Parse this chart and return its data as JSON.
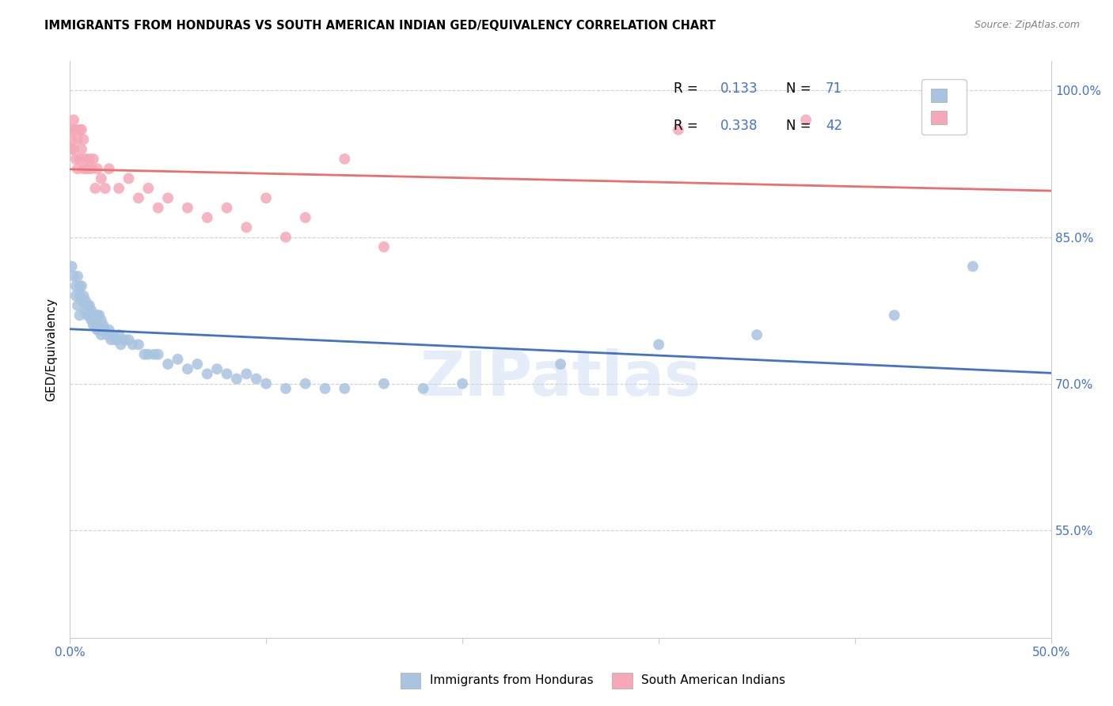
{
  "title": "IMMIGRANTS FROM HONDURAS VS SOUTH AMERICAN INDIAN GED/EQUIVALENCY CORRELATION CHART",
  "source": "Source: ZipAtlas.com",
  "ylabel": "GED/Equivalency",
  "xlim": [
    0.0,
    0.5
  ],
  "ylim": [
    0.44,
    1.03
  ],
  "xtick_positions": [
    0.0,
    0.1,
    0.2,
    0.3,
    0.4,
    0.5
  ],
  "xticklabels": [
    "0.0%",
    "",
    "",
    "",
    "",
    "50.0%"
  ],
  "ytick_positions": [
    0.55,
    0.7,
    0.85,
    1.0
  ],
  "ytick_labels": [
    "55.0%",
    "70.0%",
    "85.0%",
    "100.0%"
  ],
  "watermark": "ZIPatlas",
  "legend_v1": "0.133",
  "legend_nv1": "71",
  "legend_v2": "0.338",
  "legend_nv2": "42",
  "color_honduras": "#a8c4e0",
  "color_sa_indians": "#f4a8b8",
  "color_line_honduras": "#4472c4",
  "color_line_sa": "#e87070",
  "color_text_blue": "#4472c4",
  "honduras_x": [
    0.001,
    0.002,
    0.003,
    0.003,
    0.004,
    0.004,
    0.005,
    0.005,
    0.005,
    0.006,
    0.006,
    0.007,
    0.008,
    0.008,
    0.009,
    0.009,
    0.01,
    0.01,
    0.011,
    0.011,
    0.012,
    0.012,
    0.013,
    0.013,
    0.014,
    0.014,
    0.015,
    0.015,
    0.016,
    0.016,
    0.017,
    0.018,
    0.019,
    0.02,
    0.021,
    0.022,
    0.023,
    0.024,
    0.025,
    0.026,
    0.028,
    0.03,
    0.032,
    0.035,
    0.038,
    0.04,
    0.043,
    0.045,
    0.05,
    0.055,
    0.06,
    0.065,
    0.07,
    0.075,
    0.08,
    0.085,
    0.09,
    0.095,
    0.1,
    0.11,
    0.12,
    0.13,
    0.14,
    0.16,
    0.18,
    0.2,
    0.25,
    0.3,
    0.35,
    0.42,
    0.46
  ],
  "honduras_y": [
    0.82,
    0.81,
    0.8,
    0.79,
    0.81,
    0.78,
    0.8,
    0.79,
    0.77,
    0.8,
    0.785,
    0.79,
    0.785,
    0.775,
    0.78,
    0.77,
    0.78,
    0.77,
    0.775,
    0.765,
    0.77,
    0.76,
    0.77,
    0.76,
    0.77,
    0.755,
    0.77,
    0.755,
    0.765,
    0.75,
    0.76,
    0.755,
    0.75,
    0.755,
    0.745,
    0.75,
    0.745,
    0.745,
    0.75,
    0.74,
    0.745,
    0.745,
    0.74,
    0.74,
    0.73,
    0.73,
    0.73,
    0.73,
    0.72,
    0.725,
    0.715,
    0.72,
    0.71,
    0.715,
    0.71,
    0.705,
    0.71,
    0.705,
    0.7,
    0.695,
    0.7,
    0.695,
    0.695,
    0.7,
    0.695,
    0.7,
    0.72,
    0.74,
    0.75,
    0.77,
    0.82
  ],
  "sa_x": [
    0.001,
    0.001,
    0.001,
    0.002,
    0.002,
    0.003,
    0.003,
    0.004,
    0.004,
    0.005,
    0.005,
    0.006,
    0.006,
    0.007,
    0.007,
    0.008,
    0.009,
    0.01,
    0.011,
    0.012,
    0.013,
    0.014,
    0.016,
    0.018,
    0.02,
    0.025,
    0.03,
    0.035,
    0.04,
    0.045,
    0.05,
    0.06,
    0.07,
    0.08,
    0.09,
    0.1,
    0.11,
    0.12,
    0.14,
    0.16,
    0.31,
    0.375
  ],
  "sa_y": [
    0.96,
    0.95,
    0.94,
    0.97,
    0.94,
    0.96,
    0.93,
    0.95,
    0.92,
    0.96,
    0.93,
    0.96,
    0.94,
    0.95,
    0.92,
    0.93,
    0.92,
    0.93,
    0.92,
    0.93,
    0.9,
    0.92,
    0.91,
    0.9,
    0.92,
    0.9,
    0.91,
    0.89,
    0.9,
    0.88,
    0.89,
    0.88,
    0.87,
    0.88,
    0.86,
    0.89,
    0.85,
    0.87,
    0.93,
    0.84,
    0.96,
    0.97
  ]
}
